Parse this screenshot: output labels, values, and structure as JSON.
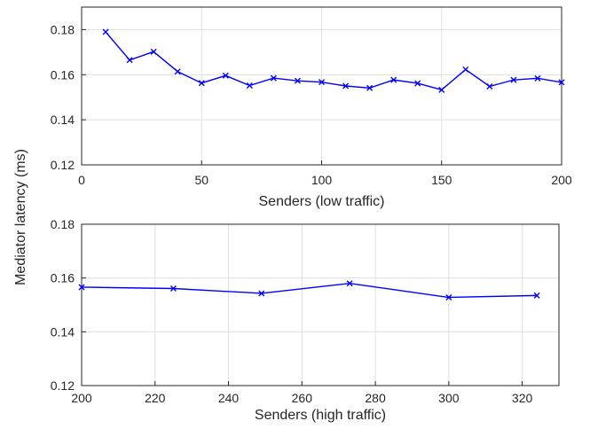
{
  "shared_ylabel": "Mediator latency (ms)",
  "series_color": "#0000ff",
  "chart_data": [
    {
      "type": "line",
      "xlabel": "Senders (low traffic)",
      "xlim": [
        0,
        200
      ],
      "ylim": [
        0.12,
        0.19
      ],
      "xticks": [
        0,
        50,
        100,
        150,
        200
      ],
      "yticks": [
        0.12,
        0.14,
        0.16,
        0.18
      ],
      "ytick_labels": [
        "0.12",
        "0.14",
        "0.16",
        "0.18"
      ],
      "grid": true,
      "marker": "x",
      "x": [
        10,
        20,
        30,
        40,
        50,
        60,
        70,
        80,
        90,
        100,
        110,
        120,
        130,
        140,
        150,
        160,
        170,
        180,
        190,
        200
      ],
      "y": [
        0.179,
        0.1665,
        0.1702,
        0.1614,
        0.1563,
        0.1596,
        0.1552,
        0.1585,
        0.1573,
        0.1567,
        0.155,
        0.1541,
        0.1577,
        0.1562,
        0.1533,
        0.1623,
        0.1548,
        0.1577,
        0.1584,
        0.1566
      ]
    },
    {
      "type": "line",
      "xlabel": "Senders (high traffic)",
      "xlim": [
        200,
        330
      ],
      "ylim": [
        0.12,
        0.18
      ],
      "xticks": [
        200,
        220,
        240,
        260,
        280,
        300,
        320
      ],
      "yticks": [
        0.12,
        0.14,
        0.16,
        0.18
      ],
      "ytick_labels": [
        "0.12",
        "0.14",
        "0.16",
        "0.18"
      ],
      "grid": true,
      "marker": "x",
      "x": [
        200,
        225,
        249,
        273,
        300,
        324
      ],
      "y": [
        0.1566,
        0.1561,
        0.1543,
        0.158,
        0.1528,
        0.1535
      ]
    }
  ]
}
